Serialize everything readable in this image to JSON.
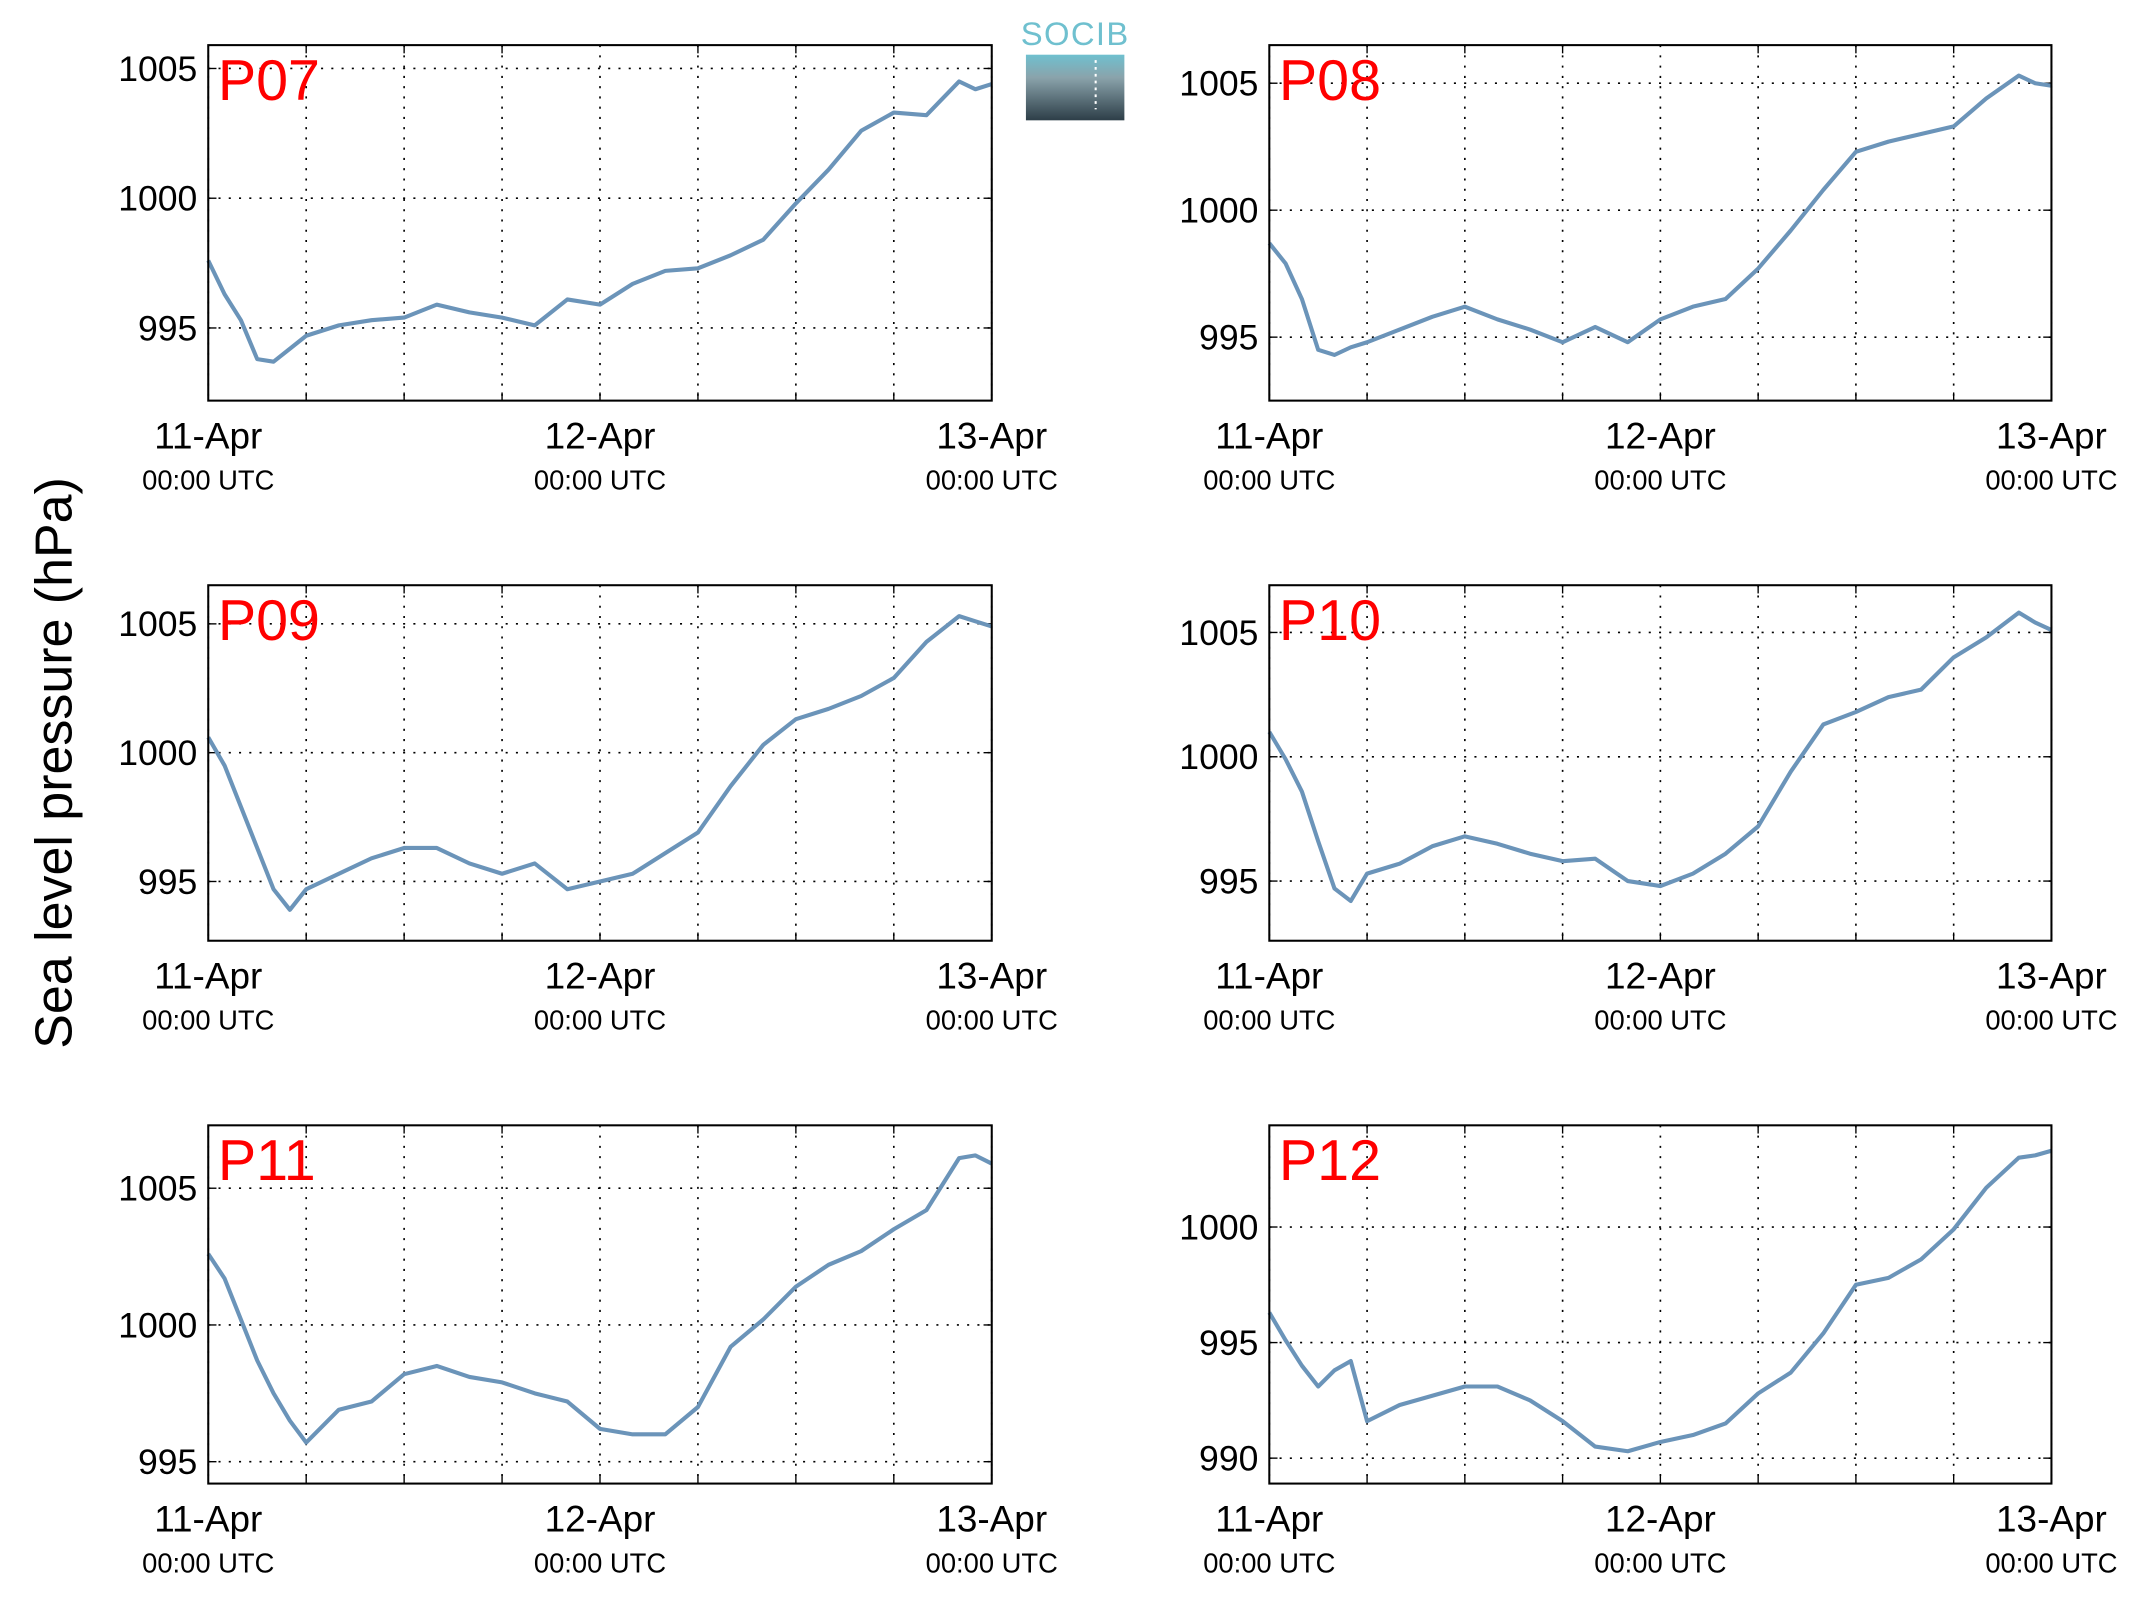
{
  "logo": "SOCIB",
  "ylabel": "Sea level pressure (hPa)",
  "chart_data": [
    {
      "type": "line",
      "title": "P07",
      "color": "#6b94b9",
      "x": [
        0,
        1,
        2,
        3,
        4,
        5,
        6,
        8,
        10,
        12,
        14,
        16,
        18,
        20,
        22,
        24,
        26,
        28,
        30,
        32,
        34,
        36,
        38,
        40,
        42,
        44,
        46,
        47,
        48
      ],
      "values": [
        997.6,
        996.3,
        995.3,
        993.8,
        993.7,
        994.2,
        994.7,
        995.1,
        995.3,
        995.4,
        995.9,
        995.6,
        995.4,
        995.1,
        996.1,
        995.9,
        996.7,
        997.2,
        997.3,
        997.8,
        998.4,
        999.8,
        1001.1,
        1002.6,
        1003.3,
        1003.2,
        1004.5,
        1004.2,
        1004.4
      ],
      "xlim": [
        0,
        48
      ],
      "xticks": [
        {
          "value": 0,
          "label": "11-Apr\n00:00 UTC"
        },
        {
          "value": 24,
          "label": "12-Apr\n00:00 UTC"
        },
        {
          "value": 48,
          "label": "13-Apr\n00:00 UTC"
        }
      ],
      "xminorticks": [
        6,
        12,
        18,
        30,
        36,
        42
      ],
      "ylim": [
        992.2,
        1005.9
      ],
      "yticks": [
        995,
        1000,
        1005
      ],
      "grid": true
    },
    {
      "type": "line",
      "title": "P08",
      "color": "#6b94b9",
      "x": [
        0,
        1,
        2,
        3,
        4,
        5,
        6,
        8,
        10,
        12,
        14,
        16,
        18,
        20,
        22,
        24,
        26,
        28,
        30,
        32,
        34,
        36,
        38,
        40,
        42,
        44,
        46,
        47,
        48
      ],
      "values": [
        998.7,
        997.9,
        996.5,
        994.5,
        994.3,
        994.6,
        994.8,
        995.3,
        995.8,
        996.2,
        995.7,
        995.3,
        994.8,
        995.4,
        994.8,
        995.7,
        996.2,
        996.5,
        997.7,
        999.2,
        1000.8,
        1002.3,
        1002.7,
        1003.0,
        1003.3,
        1004.4,
        1005.3,
        1005.0,
        1004.9
      ],
      "xlim": [
        0,
        48
      ],
      "xticks": [
        {
          "value": 0,
          "label": "11-Apr\n00:00 UTC"
        },
        {
          "value": 24,
          "label": "12-Apr\n00:00 UTC"
        },
        {
          "value": 48,
          "label": "13-Apr\n00:00 UTC"
        }
      ],
      "xminorticks": [
        6,
        12,
        18,
        30,
        36,
        42
      ],
      "ylim": [
        992.5,
        1006.5
      ],
      "yticks": [
        995,
        1000,
        1005
      ],
      "grid": true
    },
    {
      "type": "line",
      "title": "P09",
      "color": "#6b94b9",
      "x": [
        0,
        1,
        2,
        3,
        4,
        5,
        6,
        8,
        10,
        12,
        14,
        16,
        18,
        20,
        22,
        24,
        26,
        28,
        30,
        32,
        34,
        36,
        38,
        40,
        42,
        44,
        46,
        47,
        48
      ],
      "values": [
        1000.6,
        999.5,
        997.9,
        996.3,
        994.7,
        993.9,
        994.7,
        995.3,
        995.9,
        996.3,
        996.3,
        995.7,
        995.3,
        995.7,
        994.7,
        995.0,
        995.3,
        996.1,
        996.9,
        998.7,
        1000.3,
        1001.3,
        1001.7,
        1002.2,
        1002.9,
        1004.3,
        1005.3,
        1005.1,
        1004.9
      ],
      "xlim": [
        0,
        48
      ],
      "xticks": [
        {
          "value": 0,
          "label": "11-Apr\n00:00 UTC"
        },
        {
          "value": 24,
          "label": "12-Apr\n00:00 UTC"
        },
        {
          "value": 48,
          "label": "13-Apr\n00:00 UTC"
        }
      ],
      "xminorticks": [
        6,
        12,
        18,
        30,
        36,
        42
      ],
      "ylim": [
        992.7,
        1006.5
      ],
      "yticks": [
        995,
        1000,
        1005
      ],
      "grid": true
    },
    {
      "type": "line",
      "title": "P10",
      "color": "#6b94b9",
      "x": [
        0,
        1,
        2,
        3,
        4,
        5,
        6,
        8,
        10,
        12,
        14,
        16,
        18,
        20,
        22,
        24,
        26,
        28,
        30,
        32,
        34,
        36,
        38,
        40,
        42,
        44,
        46,
        47,
        48
      ],
      "values": [
        1001.0,
        999.9,
        998.6,
        996.6,
        994.7,
        994.2,
        995.3,
        995.7,
        996.4,
        996.8,
        996.5,
        996.1,
        995.8,
        995.9,
        995.0,
        994.8,
        995.3,
        996.1,
        997.2,
        999.4,
        1001.3,
        1001.8,
        1002.4,
        1002.7,
        1004.0,
        1004.8,
        1005.8,
        1005.4,
        1005.1
      ],
      "xlim": [
        0,
        48
      ],
      "xticks": [
        {
          "value": 0,
          "label": "11-Apr\n00:00 UTC"
        },
        {
          "value": 24,
          "label": "12-Apr\n00:00 UTC"
        },
        {
          "value": 48,
          "label": "13-Apr\n00:00 UTC"
        }
      ],
      "xminorticks": [
        6,
        12,
        18,
        30,
        36,
        42
      ],
      "ylim": [
        992.6,
        1006.9
      ],
      "yticks": [
        995,
        1000,
        1005
      ],
      "grid": true
    },
    {
      "type": "line",
      "title": "P11",
      "color": "#6b94b9",
      "x": [
        0,
        1,
        2,
        3,
        4,
        5,
        6,
        8,
        10,
        12,
        14,
        16,
        18,
        20,
        22,
        24,
        26,
        28,
        30,
        32,
        34,
        36,
        38,
        40,
        42,
        44,
        46,
        47,
        48
      ],
      "values": [
        1002.6,
        1001.7,
        1000.2,
        998.7,
        997.5,
        996.5,
        995.7,
        996.9,
        997.2,
        998.2,
        998.5,
        998.1,
        997.9,
        997.5,
        997.2,
        996.2,
        996.0,
        996.0,
        997.0,
        999.2,
        1000.2,
        1001.4,
        1002.2,
        1002.7,
        1003.5,
        1004.2,
        1006.1,
        1006.2,
        1005.9
      ],
      "xlim": [
        0,
        48
      ],
      "xticks": [
        {
          "value": 0,
          "label": "11-Apr\n00:00 UTC"
        },
        {
          "value": 24,
          "label": "12-Apr\n00:00 UTC"
        },
        {
          "value": 48,
          "label": "13-Apr\n00:00 UTC"
        }
      ],
      "xminorticks": [
        6,
        12,
        18,
        30,
        36,
        42
      ],
      "ylim": [
        994.2,
        1007.3
      ],
      "yticks": [
        995,
        1000,
        1005
      ],
      "grid": true
    },
    {
      "type": "line",
      "title": "P12",
      "color": "#6b94b9",
      "x": [
        0,
        1,
        2,
        3,
        4,
        5,
        6,
        8,
        10,
        12,
        14,
        16,
        18,
        20,
        22,
        24,
        26,
        28,
        30,
        32,
        34,
        36,
        38,
        40,
        42,
        44,
        46,
        47,
        48
      ],
      "values": [
        996.3,
        995.1,
        994.0,
        993.1,
        993.8,
        994.2,
        991.6,
        992.3,
        992.7,
        993.1,
        993.1,
        992.5,
        991.6,
        990.5,
        990.3,
        990.7,
        991.0,
        991.5,
        992.8,
        993.7,
        995.4,
        997.5,
        997.8,
        998.6,
        999.9,
        1001.7,
        1003.0,
        1003.1,
        1003.3
      ],
      "xlim": [
        0,
        48
      ],
      "xticks": [
        {
          "value": 0,
          "label": "11-Apr\n00:00 UTC"
        },
        {
          "value": 24,
          "label": "12-Apr\n00:00 UTC"
        },
        {
          "value": 48,
          "label": "13-Apr\n00:00 UTC"
        }
      ],
      "xminorticks": [
        6,
        12,
        18,
        30,
        36,
        42
      ],
      "ylim": [
        988.9,
        1004.4
      ],
      "yticks": [
        990,
        995,
        1000
      ],
      "grid": true
    }
  ]
}
